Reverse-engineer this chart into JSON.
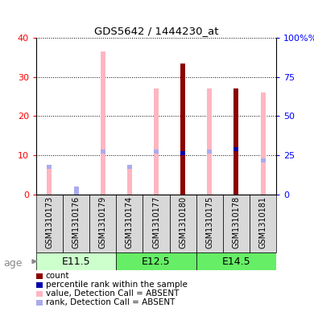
{
  "title": "GDS5642 / 1444230_at",
  "samples": [
    "GSM1310173",
    "GSM1310176",
    "GSM1310179",
    "GSM1310174",
    "GSM1310177",
    "GSM1310180",
    "GSM1310175",
    "GSM1310178",
    "GSM1310181"
  ],
  "value_absent": [
    7.5,
    0.0,
    36.5,
    7.5,
    27.0,
    0.0,
    27.0,
    0.0,
    26.0
  ],
  "rank_absent_pct": [
    17.5,
    0.0,
    27.5,
    17.5,
    27.5,
    0.0,
    27.5,
    0.0,
    21.5
  ],
  "rank_only_absent_pct": [
    0.0,
    5.0,
    0.0,
    0.0,
    0.0,
    0.0,
    0.0,
    0.0,
    0.0
  ],
  "count_present": [
    0.0,
    0.0,
    0.0,
    0.0,
    0.0,
    33.5,
    0.0,
    27.0,
    0.0
  ],
  "rank_present_pct": [
    0.0,
    0.0,
    0.0,
    0.0,
    0.0,
    26.5,
    0.0,
    29.0,
    0.0
  ],
  "age_groups": [
    {
      "label": "E11.5",
      "indices": [
        0,
        1,
        2
      ],
      "color": "#aaffaa"
    },
    {
      "label": "E12.5",
      "indices": [
        3,
        4,
        5
      ],
      "color": "#66dd66"
    },
    {
      "label": "E14.5",
      "indices": [
        6,
        7,
        8
      ],
      "color": "#66dd66"
    }
  ],
  "ylim_left": [
    0,
    40
  ],
  "ylim_right": [
    0,
    100
  ],
  "yticks_left": [
    0,
    10,
    20,
    30,
    40
  ],
  "yticks_right": [
    0,
    25,
    50,
    75,
    100
  ],
  "color_count": "#8B0000",
  "color_rank_present": "#0000AA",
  "color_value_absent": "#FFB6C1",
  "color_rank_absent": "#AAAAEE",
  "bg_label": "#d8d8d8",
  "legend": [
    {
      "label": "count",
      "color": "#8B0000"
    },
    {
      "label": "percentile rank within the sample",
      "color": "#0000AA"
    },
    {
      "label": "value, Detection Call = ABSENT",
      "color": "#FFB6C1"
    },
    {
      "label": "rank, Detection Call = ABSENT",
      "color": "#AAAAEE"
    }
  ]
}
